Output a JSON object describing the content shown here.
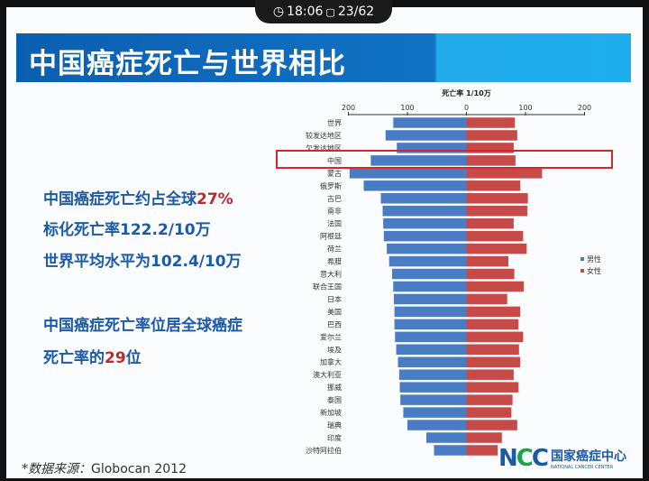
{
  "status_bar": {
    "time": "18:06",
    "page": "23/62",
    "clock_icon": "clock-icon",
    "page_icon": "slide-icon"
  },
  "slide": {
    "title": "中国癌症死亡与世界相比",
    "bullets": [
      {
        "text": "中国癌症死亡约占全球",
        "highlight": "27%",
        "rest": ""
      },
      {
        "text": "标化死亡率122.2/10万",
        "highlight": "",
        "rest": ""
      },
      {
        "text": "世界平均水平为102.4/10万",
        "highlight": "",
        "rest": ""
      },
      {
        "text": "中国癌症死亡率位居全球癌症",
        "highlight": "",
        "rest": ""
      },
      {
        "text": "死亡率的",
        "highlight": "29",
        "rest": "位"
      }
    ],
    "source_label": "*数据来源：",
    "source_value": "Globocan 2012",
    "logo": {
      "mark": "NCC",
      "cn": "国家癌症中心",
      "en": "NATIONAL CANCER CENTER"
    }
  },
  "chart_data": {
    "type": "bar",
    "orientation": "horizontal-butterfly",
    "title": "死亡率 1/10万",
    "ticks": [
      "200",
      "100",
      "0",
      "100",
      "200"
    ],
    "xlim": [
      -200,
      200
    ],
    "highlighted_category": "中国",
    "legend_position": "right",
    "categories": [
      "世界",
      "较发达地区",
      "欠发达地区",
      "中国",
      "蒙古",
      "俄罗斯",
      "古巴",
      "南非",
      "法国",
      "阿根廷",
      "荷兰",
      "希腊",
      "意大利",
      "联合王国",
      "日本",
      "美国",
      "巴西",
      "爱尔兰",
      "埃及",
      "加拿大",
      "澳大利亚",
      "挪威",
      "泰国",
      "新加坡",
      "瑞典",
      "印度",
      "沙特阿拉伯"
    ],
    "series": [
      {
        "name": "男性",
        "color": "#4a7cc4",
        "values": [
          124,
          137,
          118,
          162,
          198,
          174,
          145,
          142,
          141,
          140,
          135,
          131,
          126,
          124,
          123,
          122,
          122,
          121,
          119,
          116,
          114,
          113,
          112,
          107,
          100,
          68,
          55
        ]
      },
      {
        "name": "女性",
        "color": "#c64a48",
        "values": [
          82,
          86,
          80,
          83,
          128,
          91,
          104,
          103,
          80,
          96,
          102,
          71,
          81,
          97,
          69,
          91,
          88,
          96,
          89,
          91,
          80,
          88,
          78,
          76,
          86,
          60,
          53
        ]
      }
    ]
  }
}
